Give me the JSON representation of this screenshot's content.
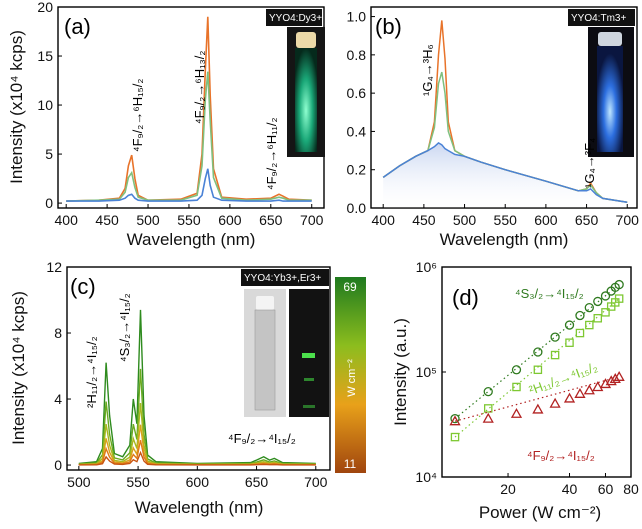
{
  "chart_data": [
    {
      "panel": "(a)",
      "type": "line",
      "tag": "YYO4:Dy3+",
      "xlabel": "Wavelength (nm)",
      "ylabel": "Intensity (x10⁴ kcps)",
      "xlim": [
        390,
        715
      ],
      "ylim": [
        -0.5,
        20
      ],
      "xticks": [
        400,
        450,
        500,
        550,
        600,
        650,
        700
      ],
      "yticks": [
        0,
        5,
        10,
        15,
        20
      ],
      "annotations": [
        "⁴F₉/₂→⁶H₁₅/₂",
        "⁴F₉/₂→⁶H₁₃/₂",
        "⁴F₉/₂→⁶H₁₁/₂"
      ],
      "series_colors": [
        "#e8732a",
        "#7fc07f",
        "#4a82d6"
      ],
      "series": [
        {
          "x": [
            400,
            440,
            465,
            472,
            476,
            480,
            484,
            488,
            500,
            540,
            560,
            566,
            570,
            573,
            576,
            580,
            590,
            620,
            650,
            660,
            665,
            672,
            700
          ],
          "values": [
            0.2,
            0.3,
            0.5,
            1.5,
            3.8,
            4.9,
            2.5,
            0.8,
            0.3,
            0.4,
            1.0,
            5.0,
            13.5,
            19.0,
            11.0,
            3.5,
            0.6,
            0.4,
            0.5,
            0.9,
            0.7,
            0.4,
            0.3
          ]
        },
        {
          "x": [
            400,
            440,
            465,
            472,
            476,
            480,
            484,
            488,
            500,
            540,
            560,
            566,
            570,
            573,
            576,
            580,
            590,
            620,
            650,
            660,
            665,
            672,
            700
          ],
          "values": [
            0.2,
            0.3,
            0.4,
            1.1,
            2.6,
            3.1,
            1.6,
            0.6,
            0.3,
            0.3,
            0.8,
            3.8,
            10.5,
            13.4,
            8.4,
            2.6,
            0.5,
            0.3,
            0.4,
            0.6,
            0.5,
            0.3,
            0.3
          ]
        },
        {
          "x": [
            400,
            440,
            465,
            472,
            476,
            480,
            484,
            488,
            500,
            540,
            560,
            566,
            570,
            573,
            576,
            580,
            590,
            620,
            650,
            660,
            665,
            672,
            700
          ],
          "values": [
            0.2,
            0.2,
            0.3,
            0.5,
            0.8,
            0.9,
            0.5,
            0.3,
            0.2,
            0.2,
            0.3,
            0.8,
            2.5,
            3.5,
            1.8,
            0.6,
            0.3,
            0.2,
            0.2,
            0.3,
            0.2,
            0.2,
            0.2
          ]
        }
      ]
    },
    {
      "panel": "(b)",
      "type": "line",
      "tag": "YYO4:Tm3+",
      "xlabel": "Wavelength (nm)",
      "ylabel": "",
      "xlim": [
        385,
        712
      ],
      "ylim": [
        0,
        1.05
      ],
      "xticks": [
        400,
        450,
        500,
        550,
        600,
        650,
        700
      ],
      "yticks": [
        0.0,
        0.2,
        0.4,
        0.6,
        0.8,
        1.0
      ],
      "annotations": [
        "¹G₄→³H₆",
        "¹G₄→³F₄"
      ],
      "series_colors": [
        "#e8732a",
        "#7fc07f",
        "#4a82d6"
      ],
      "series": [
        {
          "x": [
            400,
            420,
            440,
            455,
            463,
            468,
            472,
            476,
            480,
            488,
            500,
            520,
            550,
            600,
            640,
            650,
            655,
            662,
            670,
            700
          ],
          "values": [
            0.16,
            0.22,
            0.27,
            0.3,
            0.45,
            0.8,
            0.98,
            0.78,
            0.45,
            0.3,
            0.27,
            0.24,
            0.2,
            0.14,
            0.09,
            0.1,
            0.13,
            0.08,
            0.05,
            0.03
          ]
        },
        {
          "x": [
            400,
            420,
            440,
            455,
            463,
            468,
            472,
            476,
            480,
            488,
            500,
            520,
            550,
            600,
            640,
            650,
            655,
            662,
            670,
            700
          ],
          "values": [
            0.16,
            0.22,
            0.27,
            0.3,
            0.42,
            0.65,
            0.71,
            0.6,
            0.4,
            0.3,
            0.27,
            0.24,
            0.2,
            0.14,
            0.09,
            0.1,
            0.12,
            0.08,
            0.05,
            0.03
          ]
        },
        {
          "x": [
            400,
            420,
            440,
            455,
            463,
            468,
            472,
            476,
            480,
            488,
            500,
            520,
            550,
            600,
            640,
            650,
            655,
            662,
            670,
            700
          ],
          "values": [
            0.16,
            0.22,
            0.27,
            0.3,
            0.32,
            0.34,
            0.33,
            0.31,
            0.3,
            0.28,
            0.27,
            0.24,
            0.2,
            0.14,
            0.09,
            0.09,
            0.1,
            0.07,
            0.05,
            0.03
          ]
        }
      ]
    },
    {
      "panel": "(c)",
      "type": "line",
      "tag": "YYO4:Yb3+,Er3+",
      "xlabel": "Wavelength (nm)",
      "ylabel": "Intensity (x10⁴ kcps)",
      "xlim": [
        490,
        712
      ],
      "ylim": [
        -0.3,
        12
      ],
      "xticks": [
        500,
        550,
        600,
        650,
        700
      ],
      "yticks": [
        0,
        4,
        8,
        12
      ],
      "annotations": [
        "²H₁₁/₂→⁴I₁₅/₂",
        "⁴S₃/₂→⁴I₁₅/₂",
        "⁴F₉/₂→⁴I₁₅/₂"
      ],
      "colorbar": {
        "title": "W cm⁻²",
        "max_label": "69",
        "min_label": "11"
      },
      "series_colors": [
        "#2e8b1e",
        "#6aaa1e",
        "#a8b81e",
        "#d8a21a",
        "#e07a16",
        "#c85512"
      ],
      "shape": {
        "x": [
          500,
          515,
          520,
          523,
          526,
          530,
          537,
          543,
          546,
          549,
          552,
          555,
          558,
          565,
          600,
          645,
          650,
          656,
          661,
          665,
          672,
          700
        ],
        "values": [
          0.1,
          0.2,
          1.0,
          6.2,
          3.0,
          0.7,
          0.5,
          1.2,
          4.0,
          2.5,
          9.4,
          3.0,
          0.6,
          0.2,
          0.1,
          0.15,
          0.3,
          0.5,
          0.3,
          0.4,
          0.15,
          0.1
        ]
      },
      "series": [
        {
          "scale": 1.0
        },
        {
          "scale": 0.62
        },
        {
          "scale": 0.4
        },
        {
          "scale": 0.26
        },
        {
          "scale": 0.16
        },
        {
          "scale": 0.08
        }
      ]
    },
    {
      "panel": "(d)",
      "type": "scatter",
      "xlabel": "Power (W cm⁻²)",
      "ylabel": "Intensity (a.u.)",
      "xscale": "log",
      "yscale": "log",
      "xlim": [
        9.5,
        80
      ],
      "ylim": [
        10000,
        1000000
      ],
      "xticks": [
        20,
        40,
        60,
        80
      ],
      "yticks": [
        10000,
        100000,
        1000000
      ],
      "ytick_labels": [
        "10⁴",
        "10⁵",
        "10⁶"
      ],
      "series": [
        {
          "name": "⁴S₃/₂→⁴I₁₅/₂",
          "marker": "circle",
          "color": "#2f7a1f",
          "x": [
            11,
            16,
            22,
            28,
            34,
            40,
            45,
            50,
            55,
            60,
            64,
            67,
            70
          ],
          "values": [
            36000,
            65000,
            105000,
            155000,
            215000,
            280000,
            345000,
            410000,
            470000,
            530000,
            590000,
            640000,
            680000
          ]
        },
        {
          "name": "²H₁₁/₂→⁴I₁₅/₂",
          "marker": "square",
          "color": "#7ec832",
          "x": [
            11,
            16,
            22,
            28,
            34,
            40,
            45,
            50,
            55,
            60,
            64,
            67,
            70
          ],
          "values": [
            24000,
            45000,
            72000,
            105000,
            145000,
            190000,
            235000,
            280000,
            325000,
            370000,
            420000,
            460000,
            500000
          ]
        },
        {
          "name": "⁴F₉/₂→⁴I₁₅/₂",
          "marker": "triangle",
          "color": "#b22222",
          "x": [
            11,
            16,
            22,
            28,
            34,
            40,
            45,
            50,
            55,
            60,
            64,
            67,
            70
          ],
          "values": [
            34000,
            36000,
            40000,
            44000,
            50000,
            56000,
            62000,
            67000,
            72000,
            77000,
            82000,
            86000,
            90000
          ]
        }
      ]
    }
  ]
}
